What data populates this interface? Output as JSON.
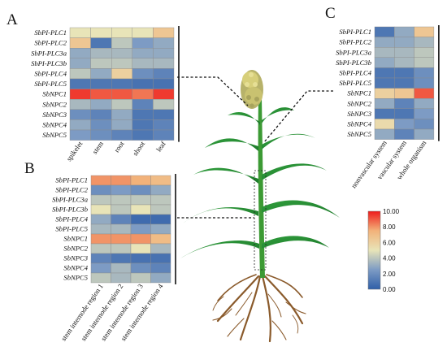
{
  "colorbar": {
    "min": 0,
    "max": 10,
    "ticks": [
      "10.00",
      "8.00",
      "6.00",
      "4.00",
      "2.00",
      "0.00"
    ],
    "stops": [
      "#2f5fa8",
      "#7d9bc4",
      "#e8e4b8",
      "#f2b27a",
      "#ee1c1c"
    ]
  },
  "panels": [
    {
      "id": "A",
      "label": "A",
      "rows": [
        "SbPI-PLC1",
        "SbPI-PLC2",
        "SbPI-PLC3a",
        "SbPI-PLC3b",
        "SbPI-PLC4",
        "SbPI-PLC5",
        "SbNPC1",
        "SbNPC2",
        "SbNPC3",
        "SbNPC4",
        "SbNPC5"
      ],
      "columns": [
        "spikelet",
        "stem",
        "root",
        "shoot",
        "leaf"
      ],
      "values": [
        [
          5,
          5,
          5,
          5,
          6.5
        ],
        [
          6.5,
          1,
          4,
          2.5,
          3
        ],
        [
          3,
          3.5,
          3.5,
          3,
          3
        ],
        [
          3,
          4,
          4,
          3.5,
          3.5
        ],
        [
          4,
          3,
          6,
          2,
          1.5
        ],
        [
          1,
          1,
          1,
          0.8,
          0.8
        ],
        [
          9.5,
          9,
          9,
          8.5,
          9.5
        ],
        [
          3.5,
          3,
          4,
          1.5,
          4
        ],
        [
          2,
          1.5,
          3,
          1,
          1
        ],
        [
          3,
          2,
          3,
          1,
          1.5
        ],
        [
          2.5,
          2,
          1.5,
          1,
          1.5
        ]
      ]
    },
    {
      "id": "B",
      "label": "B",
      "rows": [
        "SbPI-PLC1",
        "SbPI-PLC2",
        "SbPI-PLC3a",
        "SbPI-PLC3b",
        "SbPI-PLC4",
        "SbPI-PLC5",
        "SbNPC1",
        "SbNPC2",
        "SbNPC3",
        "SbNPC4",
        "SbNPC5"
      ],
      "columns": [
        "stem internode region 1",
        "stem internode region 2",
        "stem internode region 3",
        "stem internode region 4"
      ],
      "values": [
        [
          8,
          8,
          7.5,
          7
        ],
        [
          2,
          2.5,
          2,
          3
        ],
        [
          4,
          4,
          4,
          4
        ],
        [
          5,
          4,
          5,
          4
        ],
        [
          3,
          1.5,
          0.5,
          0.5
        ],
        [
          3.5,
          3.5,
          2.5,
          3
        ],
        [
          8,
          8,
          8,
          7
        ],
        [
          4,
          4,
          5,
          3.5
        ],
        [
          1.5,
          1,
          0.8,
          0.8
        ],
        [
          2.5,
          3.5,
          2,
          1.5
        ],
        [
          4,
          3.5,
          4,
          3
        ]
      ]
    },
    {
      "id": "C",
      "label": "C",
      "rows": [
        "SbPI-PLC1",
        "SbPI-PLC2",
        "SbPI-PLC3a",
        "SbPI-PLC3b",
        "SbPI-PLC4",
        "SbPI-PLC5",
        "SbNPC1",
        "SbNPC2",
        "SbNPC3",
        "SbNPC4",
        "SbNPC5"
      ],
      "columns": [
        "nonvascular system",
        "vascular system",
        "whole organism"
      ],
      "values": [
        [
          1,
          3,
          6.5
        ],
        [
          3,
          3,
          3.5
        ],
        [
          3.5,
          3.5,
          4
        ],
        [
          3,
          3.5,
          4
        ],
        [
          1,
          1,
          2
        ],
        [
          1,
          1,
          2
        ],
        [
          6,
          6.5,
          9
        ],
        [
          3,
          1.5,
          3
        ],
        [
          1,
          1,
          2.5
        ],
        [
          5.5,
          2.5,
          2
        ],
        [
          3,
          1.5,
          3
        ]
      ]
    }
  ]
}
